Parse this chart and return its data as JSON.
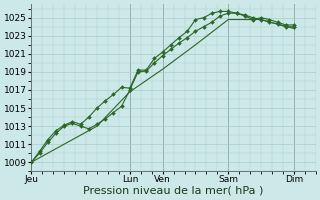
{
  "bg_color": "#cce8e8",
  "grid_color": "#aacccc",
  "line_color": "#2d6628",
  "marker_color": "#2d6628",
  "ylabel_ticks": [
    1009,
    1011,
    1013,
    1015,
    1017,
    1019,
    1021,
    1023,
    1025
  ],
  "ylim": [
    1008.0,
    1026.5
  ],
  "xlabel": "Pression niveau de la mer( hPa )",
  "xlabel_fontsize": 8,
  "tick_fontsize": 6.5,
  "x_tick_labels": [
    "Jeu",
    "Lun",
    "Ven",
    "Sam",
    "Dim"
  ],
  "x_tick_positions": [
    0,
    72,
    96,
    144,
    192
  ],
  "xlim": [
    0,
    208
  ],
  "vline_color": "#667777",
  "series1": [
    [
      0,
      1009.0
    ],
    [
      6,
      1010.0
    ],
    [
      12,
      1011.2
    ],
    [
      18,
      1012.2
    ],
    [
      24,
      1013.0
    ],
    [
      30,
      1013.3
    ],
    [
      36,
      1013.0
    ],
    [
      42,
      1012.7
    ],
    [
      48,
      1013.2
    ],
    [
      54,
      1013.8
    ],
    [
      60,
      1014.5
    ],
    [
      66,
      1015.2
    ],
    [
      72,
      1017.0
    ],
    [
      78,
      1019.0
    ],
    [
      84,
      1019.1
    ],
    [
      90,
      1020.0
    ],
    [
      96,
      1020.8
    ],
    [
      102,
      1021.5
    ],
    [
      108,
      1022.2
    ],
    [
      114,
      1022.8
    ],
    [
      120,
      1023.5
    ],
    [
      126,
      1024.0
    ],
    [
      132,
      1024.5
    ],
    [
      138,
      1025.2
    ],
    [
      144,
      1025.5
    ],
    [
      150,
      1025.5
    ],
    [
      156,
      1025.3
    ],
    [
      162,
      1025.0
    ],
    [
      168,
      1024.8
    ],
    [
      174,
      1024.5
    ],
    [
      180,
      1024.3
    ],
    [
      186,
      1024.0
    ],
    [
      192,
      1024.0
    ]
  ],
  "series2": [
    [
      0,
      1009.0
    ],
    [
      6,
      1010.2
    ],
    [
      12,
      1011.5
    ],
    [
      18,
      1012.5
    ],
    [
      24,
      1013.1
    ],
    [
      30,
      1013.5
    ],
    [
      36,
      1013.2
    ],
    [
      42,
      1014.0
    ],
    [
      48,
      1015.0
    ],
    [
      54,
      1015.8
    ],
    [
      60,
      1016.5
    ],
    [
      66,
      1017.3
    ],
    [
      72,
      1017.2
    ],
    [
      78,
      1019.2
    ],
    [
      84,
      1019.2
    ],
    [
      90,
      1020.5
    ],
    [
      96,
      1021.2
    ],
    [
      102,
      1022.0
    ],
    [
      108,
      1022.8
    ],
    [
      114,
      1023.5
    ],
    [
      120,
      1024.8
    ],
    [
      126,
      1025.0
    ],
    [
      132,
      1025.5
    ],
    [
      138,
      1025.7
    ],
    [
      144,
      1025.7
    ],
    [
      150,
      1025.5
    ],
    [
      156,
      1025.2
    ],
    [
      162,
      1024.8
    ],
    [
      168,
      1025.0
    ],
    [
      174,
      1024.8
    ],
    [
      180,
      1024.5
    ],
    [
      186,
      1024.2
    ],
    [
      192,
      1024.2
    ]
  ],
  "series3": [
    [
      0,
      1009.0
    ],
    [
      48,
      1013.0
    ],
    [
      72,
      1016.8
    ],
    [
      96,
      1019.3
    ],
    [
      120,
      1022.0
    ],
    [
      144,
      1024.8
    ],
    [
      168,
      1024.8
    ],
    [
      192,
      1023.8
    ]
  ]
}
